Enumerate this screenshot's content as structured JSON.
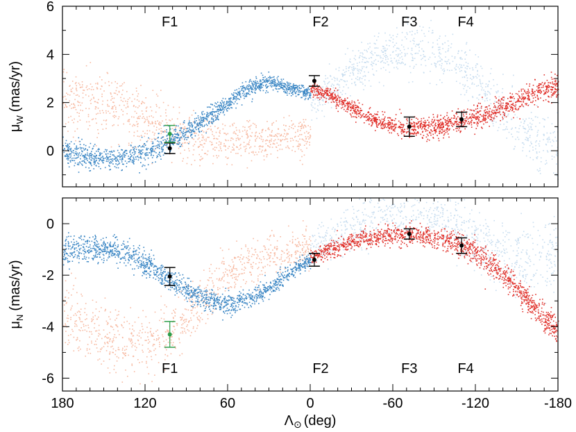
{
  "chart_data": {
    "type": "scatter",
    "x_axis": {
      "label_symbol": "Λ",
      "label_subscript": "⊙",
      "label_unit": "(deg)",
      "range": [
        180,
        -180
      ],
      "ticks": [
        180,
        120,
        60,
        0,
        -60,
        -120,
        -180
      ],
      "tick_labels": [
        "180",
        "120",
        "60",
        "0",
        "-60",
        "-120",
        "-180"
      ]
    },
    "fields": [
      {
        "name": "F1",
        "lambda": 102
      },
      {
        "name": "F2",
        "lambda": 0
      },
      {
        "name": "F3",
        "lambda": -72
      },
      {
        "name": "F4",
        "lambda": -113
      }
    ],
    "colors": {
      "dark_blue": "#3a86c4",
      "light_blue": "#c6dcef",
      "salmon": "#f7b9a1",
      "red": "#e0302a",
      "observed": "#000000",
      "alternate": "#2e9e4a"
    },
    "panels": [
      {
        "id": "mu_w",
        "ylabel_main": "μ",
        "ylabel_sub": "W",
        "ylabel_unit": "(mas/yr)",
        "ylim": [
          -1.5,
          6
        ],
        "yticks": [
          0,
          2,
          4,
          6
        ],
        "ytick_labels": [
          "0",
          "2",
          "4",
          "6"
        ],
        "field_label_position": "top",
        "model_curves": [
          {
            "name": "leading-dark-blue",
            "color": "dark_blue",
            "x": [
              180,
              165,
              150,
              135,
              120,
              105,
              90,
              75,
              60,
              45,
              30,
              15,
              0
            ],
            "y": [
              0.0,
              -0.2,
              -0.3,
              -0.25,
              -0.05,
              0.3,
              0.8,
              1.4,
              2.0,
              2.6,
              2.9,
              2.6,
              2.4
            ]
          },
          {
            "name": "leading-light-blue",
            "color": "light_blue",
            "x": [
              0,
              -15,
              -30,
              -45,
              -60,
              -75,
              -90,
              -105,
              -120,
              -135,
              -150,
              -165,
              -180
            ],
            "y": [
              2.0,
              2.6,
              3.3,
              3.8,
              4.2,
              4.3,
              4.1,
              3.6,
              2.8,
              1.8,
              1.0,
              0.4,
              0.1
            ]
          },
          {
            "name": "trailing-salmon",
            "color": "salmon",
            "x": [
              180,
              165,
              150,
              135,
              120,
              105,
              90,
              75,
              60,
              45,
              30,
              15,
              0
            ],
            "y": [
              1.9,
              2.0,
              1.9,
              1.7,
              1.3,
              0.9,
              0.6,
              0.4,
              0.35,
              0.4,
              0.5,
              0.6,
              0.7
            ]
          },
          {
            "name": "trailing-red",
            "color": "red",
            "x": [
              0,
              -15,
              -30,
              -45,
              -60,
              -75,
              -90,
              -105,
              -120,
              -135,
              -150,
              -165,
              -180
            ],
            "y": [
              2.6,
              2.3,
              1.8,
              1.3,
              1.05,
              0.95,
              1.0,
              1.15,
              1.35,
              1.7,
              2.1,
              2.5,
              2.7
            ]
          }
        ],
        "observations": [
          {
            "field": "F1",
            "x": 102,
            "y": 0.1,
            "err": 0.22,
            "series": "observed"
          },
          {
            "field": "F1",
            "x": 102,
            "y": 0.7,
            "err": 0.35,
            "series": "alternate"
          },
          {
            "field": "F2",
            "x": -3,
            "y": 2.9,
            "err": 0.22,
            "series": "observed"
          },
          {
            "field": "F3",
            "x": -72,
            "y": 1.0,
            "err": 0.4,
            "series": "observed"
          },
          {
            "field": "F4",
            "x": -110,
            "y": 1.3,
            "err": 0.3,
            "series": "observed"
          }
        ]
      },
      {
        "id": "mu_n",
        "ylabel_main": "μ",
        "ylabel_sub": "N",
        "ylabel_unit": "(mas/yr)",
        "ylim": [
          -6.5,
          1
        ],
        "yticks": [
          0,
          -2,
          -4,
          -6
        ],
        "ytick_labels": [
          "0",
          "-2",
          "-4",
          "-6"
        ],
        "field_label_position": "bottom",
        "model_curves": [
          {
            "name": "leading-dark-blue",
            "color": "dark_blue",
            "x": [
              180,
              165,
              150,
              135,
              120,
              105,
              90,
              75,
              60,
              45,
              30,
              15,
              0
            ],
            "y": [
              -1.0,
              -0.9,
              -0.9,
              -1.1,
              -1.5,
              -2.1,
              -2.6,
              -3.0,
              -3.1,
              -2.9,
              -2.5,
              -1.9,
              -1.4
            ]
          },
          {
            "name": "leading-light-blue",
            "color": "light_blue",
            "x": [
              0,
              -15,
              -30,
              -45,
              -60,
              -75,
              -90,
              -105,
              -120,
              -135,
              -150,
              -165,
              -180
            ],
            "y": [
              -0.9,
              -0.6,
              -0.2,
              0.2,
              0.5,
              0.5,
              0.3,
              -0.1,
              -0.6,
              -1.1,
              -1.4,
              -1.4,
              -1.2
            ]
          },
          {
            "name": "trailing-salmon",
            "color": "salmon",
            "x": [
              180,
              165,
              150,
              135,
              120,
              105,
              90,
              75,
              60,
              45,
              30,
              15,
              0
            ],
            "y": [
              -3.5,
              -4.0,
              -4.4,
              -4.6,
              -4.6,
              -4.3,
              -3.6,
              -2.7,
              -2.0,
              -1.5,
              -1.2,
              -1.0,
              -0.9
            ]
          },
          {
            "name": "trailing-red",
            "color": "red",
            "x": [
              0,
              -15,
              -30,
              -45,
              -60,
              -75,
              -90,
              -105,
              -120,
              -135,
              -150,
              -165,
              -180
            ],
            "y": [
              -1.3,
              -1.0,
              -0.7,
              -0.5,
              -0.4,
              -0.4,
              -0.5,
              -0.7,
              -1.1,
              -1.7,
              -2.5,
              -3.4,
              -4.2
            ]
          }
        ],
        "observations": [
          {
            "field": "F1",
            "x": 102,
            "y": -2.05,
            "err": 0.35,
            "series": "observed"
          },
          {
            "field": "F1",
            "x": 102,
            "y": -4.3,
            "err": 0.5,
            "series": "alternate"
          },
          {
            "field": "F2",
            "x": -3,
            "y": -1.4,
            "err": 0.25,
            "series": "observed"
          },
          {
            "field": "F3",
            "x": -72,
            "y": -0.4,
            "err": 0.2,
            "series": "observed"
          },
          {
            "field": "F4",
            "x": -110,
            "y": -0.85,
            "err": 0.3,
            "series": "observed"
          }
        ]
      }
    ]
  }
}
